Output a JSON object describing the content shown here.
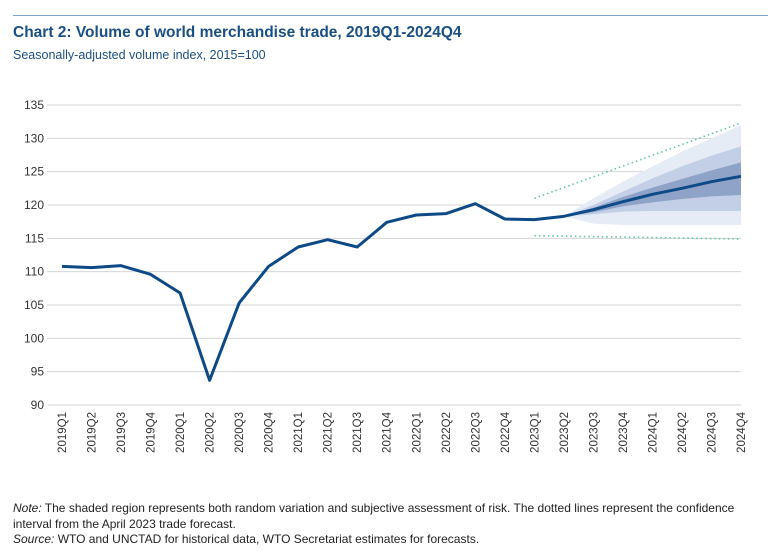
{
  "title": "Chart 2: Volume of world merchandise trade, 2019Q1-2024Q4",
  "subtitle": "Seasonally-adjusted volume index, 2015=100",
  "note_label": "Note:",
  "note_text": " The shaded region represents both random variation and subjective assessment of risk. The dotted lines represent the confidence interval from the April 2023 trade forecast.",
  "source_label": "Source:",
  "source_text": " WTO and UNCTAD for historical data, WTO Secretariat estimates for forecasts.",
  "colors": {
    "line": "#0d4a86",
    "band_outer": "#e6ecf6",
    "band_mid": "#c3cfe6",
    "band_inner": "#8fa3c8",
    "dotted": "#5fc4a8",
    "grid": "#d4d4d4"
  },
  "chart_data": {
    "type": "line",
    "title": "Chart 2: Volume of world merchandise trade, 2019Q1-2024Q4",
    "ylabel": "Seasonally-adjusted volume index, 2015=100",
    "ylim": [
      90,
      135
    ],
    "yticks": [
      90,
      95,
      100,
      105,
      110,
      115,
      120,
      125,
      130,
      135
    ],
    "grid": "horizontal",
    "categories": [
      "2019Q1",
      "2019Q2",
      "2019Q3",
      "2019Q4",
      "2020Q1",
      "2020Q2",
      "2020Q3",
      "2020Q4",
      "2021Q1",
      "2021Q2",
      "2021Q3",
      "2021Q4",
      "2022Q1",
      "2022Q2",
      "2022Q3",
      "2022Q4",
      "2023Q1",
      "2023Q2",
      "2023Q3",
      "2023Q4",
      "2024Q1",
      "2024Q2",
      "2024Q3",
      "2024Q4"
    ],
    "series": [
      {
        "values": [
          110.8,
          110.6,
          110.9,
          109.6,
          106.8,
          93.7,
          105.3,
          110.8,
          113.7,
          114.8,
          113.7,
          117.4,
          118.5,
          118.7,
          120.2,
          117.9,
          117.8,
          118.3,
          119.3,
          120.5,
          121.6,
          122.5,
          123.5,
          124.3
        ]
      }
    ],
    "fan": {
      "categories": [
        "2023Q2",
        "2023Q3",
        "2023Q4",
        "2024Q1",
        "2024Q2",
        "2024Q3",
        "2024Q4"
      ],
      "outer": {
        "low": [
          118.3,
          117.2,
          117.0,
          117.0,
          117.0,
          117.0,
          117.0
        ],
        "high": [
          118.3,
          121.0,
          123.5,
          125.8,
          128.0,
          130.0,
          132.0
        ]
      },
      "middle": {
        "low": [
          118.3,
          118.6,
          119.0,
          119.1,
          119.1,
          119.1,
          119.1
        ],
        "high": [
          118.3,
          120.0,
          122.0,
          124.0,
          125.8,
          127.4,
          128.8
        ]
      },
      "inner": {
        "low": [
          118.3,
          118.9,
          119.8,
          120.4,
          120.9,
          121.3,
          121.5
        ],
        "high": [
          118.3,
          119.6,
          121.2,
          122.6,
          123.9,
          125.2,
          126.4
        ]
      }
    },
    "confidence_interval": {
      "categories": [
        "2023Q1",
        "2024Q4"
      ],
      "upper": [
        121.0,
        132.3
      ],
      "lower": [
        115.4,
        114.9
      ]
    }
  }
}
